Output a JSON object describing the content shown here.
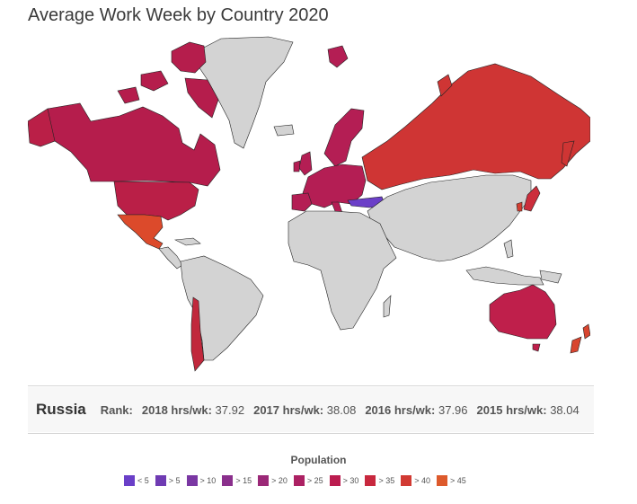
{
  "title": "Average Work Week by Country 2020",
  "selected": {
    "country": "Russia",
    "rank_label": "Rank:",
    "stats": [
      {
        "label": "2018 hrs/wk:",
        "value": "37.92"
      },
      {
        "label": "2017 hrs/wk:",
        "value": "38.08"
      },
      {
        "label": "2016 hrs/wk:",
        "value": "37.96"
      },
      {
        "label": "2015 hrs/wk:",
        "value": "38.04"
      }
    ]
  },
  "legend": {
    "title": "Population",
    "items": [
      {
        "label": "< 5",
        "color": "#6a3fc8"
      },
      {
        "label": "> 5",
        "color": "#6f3bb3"
      },
      {
        "label": "> 10",
        "color": "#7a37a3"
      },
      {
        "label": "> 15",
        "color": "#8a2f8c"
      },
      {
        "label": "> 20",
        "color": "#9b2877"
      },
      {
        "label": "> 25",
        "color": "#ac2163"
      },
      {
        "label": "> 30",
        "color": "#bb1c4f"
      },
      {
        "label": "> 35",
        "color": "#c8283e"
      },
      {
        "label": "> 40",
        "color": "#d13a33"
      },
      {
        "label": "> 45",
        "color": "#dd5a2c"
      }
    ]
  },
  "colors": {
    "no_data": "#d3d3d3",
    "canada": "#b51d4c",
    "usa": "#ba1f47",
    "mexico": "#dc4a2b",
    "russia": "#cf3534",
    "europe": "#b41e54",
    "turkey": "#6b3fc8",
    "australia": "#bf1f4b",
    "chile": "#c1283c",
    "new_zealand": "#d8452f",
    "japan": "#cc2e3c",
    "korea": "#d33f32"
  }
}
